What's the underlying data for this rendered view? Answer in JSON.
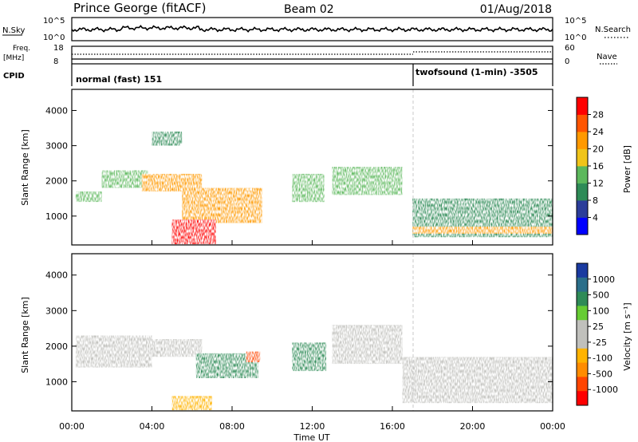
{
  "header": {
    "station": "Prince George (fitACF)",
    "beam": "Beam 02",
    "date": "01/Aug/2018"
  },
  "summary": {
    "nsky_label": "N.Sky",
    "nsky_top_tick": "10^5",
    "nsky_bottom_tick": "10^0",
    "nsearch_label": "N.Search",
    "nsearch_top_tick": "10^5",
    "nsearch_bottom_tick": "10^0",
    "freq_label": "Freq.",
    "freq_unit": "[MHz]",
    "freq_top_tick": "18",
    "freq_bottom_tick": "8",
    "nave_label": "Nave",
    "nave_top_tick": "60",
    "nave_bottom_tick": "0",
    "cpid_label": "CPID",
    "cpid_segments": [
      {
        "label": "normal (fast) 151",
        "start_hour": 0,
        "end_hour": 17
      },
      {
        "label": "twofsound (1-min) -3505",
        "start_hour": 17,
        "end_hour": 24
      }
    ]
  },
  "colors": {
    "power_scale": [
      "#0000ff",
      "#2b3d9a",
      "#2e8b57",
      "#5cb85c",
      "#f0c419",
      "#ff9900",
      "#ff5500",
      "#ff0000"
    ],
    "velocity_scale": [
      "#ff0000",
      "#ff4500",
      "#ff8c00",
      "#ffb300",
      "#c0c0bc",
      "#c0c0bc",
      "#66cc33",
      "#2e8b57",
      "#2a6e8a",
      "#1a3aa0"
    ]
  },
  "chart_data": [
    {
      "type": "heatmap",
      "name": "power-panel",
      "xlabel": "",
      "ylabel": "Slant Range [km]",
      "xlim": [
        0,
        24
      ],
      "ylim": [
        180,
        4600
      ],
      "yticks": [
        "1000",
        "2000",
        "3000",
        "4000"
      ],
      "colorbar_label": "Power [dB]",
      "colorbar_ticks": [
        "4",
        "8",
        "12",
        "16",
        "20",
        "24",
        "28"
      ],
      "regions": [
        {
          "hours": [
            0.2,
            1.5
          ],
          "range_km": [
            1400,
            1700
          ],
          "power_db": 12
        },
        {
          "hours": [
            1.5,
            3.8
          ],
          "range_km": [
            1800,
            2300
          ],
          "power_db": 13
        },
        {
          "hours": [
            3.5,
            6.5
          ],
          "range_km": [
            1700,
            2200
          ],
          "power_db": 20
        },
        {
          "hours": [
            4.0,
            5.5
          ],
          "range_km": [
            3000,
            3400
          ],
          "power_db": 11
        },
        {
          "hours": [
            5.5,
            9.5
          ],
          "range_km": [
            800,
            1800
          ],
          "power_db": 22
        },
        {
          "hours": [
            5.0,
            7.2
          ],
          "range_km": [
            200,
            900
          ],
          "power_db": 30
        },
        {
          "hours": [
            11.0,
            12.6
          ],
          "range_km": [
            1400,
            2200
          ],
          "power_db": 14
        },
        {
          "hours": [
            13.0,
            16.5
          ],
          "range_km": [
            1600,
            2400
          ],
          "power_db": 15
        },
        {
          "hours": [
            17.0,
            24.0
          ],
          "range_km": [
            400,
            1500
          ],
          "power_db": 9
        },
        {
          "hours": [
            17.0,
            24.0
          ],
          "range_km": [
            500,
            700
          ],
          "power_db": 21
        }
      ]
    },
    {
      "type": "heatmap",
      "name": "velocity-panel",
      "xlabel": "Time UT",
      "ylabel": "Slant Range [km]",
      "xlim": [
        0,
        24
      ],
      "ylim": [
        180,
        4600
      ],
      "xticks": [
        "00:00",
        "04:00",
        "08:00",
        "12:00",
        "16:00",
        "20:00",
        "00:00"
      ],
      "yticks": [
        "1000",
        "2000",
        "3000",
        "4000"
      ],
      "colorbar_label": "Velocity [m s⁻¹]",
      "colorbar_ticks": [
        "1000",
        "500",
        "100",
        "25",
        "-25",
        "-100",
        "-500",
        "-1000"
      ],
      "regions": [
        {
          "hours": [
            0.2,
            4.0
          ],
          "range_km": [
            1400,
            2300
          ],
          "velocity_ms": 0
        },
        {
          "hours": [
            3.5,
            6.5
          ],
          "range_km": [
            1700,
            2200
          ],
          "velocity_ms": 0
        },
        {
          "hours": [
            6.2,
            9.3
          ],
          "range_km": [
            1100,
            1800
          ],
          "velocity_ms": 150
        },
        {
          "hours": [
            8.7,
            9.4
          ],
          "range_km": [
            1550,
            1850
          ],
          "velocity_ms": -600
        },
        {
          "hours": [
            5.0,
            7.0
          ],
          "range_km": [
            200,
            600
          ],
          "velocity_ms": -100
        },
        {
          "hours": [
            11.0,
            12.7
          ],
          "range_km": [
            1300,
            2100
          ],
          "velocity_ms": 400
        },
        {
          "hours": [
            13.0,
            16.5
          ],
          "range_km": [
            1500,
            2600
          ],
          "velocity_ms": 0
        },
        {
          "hours": [
            16.5,
            24.0
          ],
          "range_km": [
            400,
            1700
          ],
          "velocity_ms": 0
        }
      ]
    }
  ]
}
